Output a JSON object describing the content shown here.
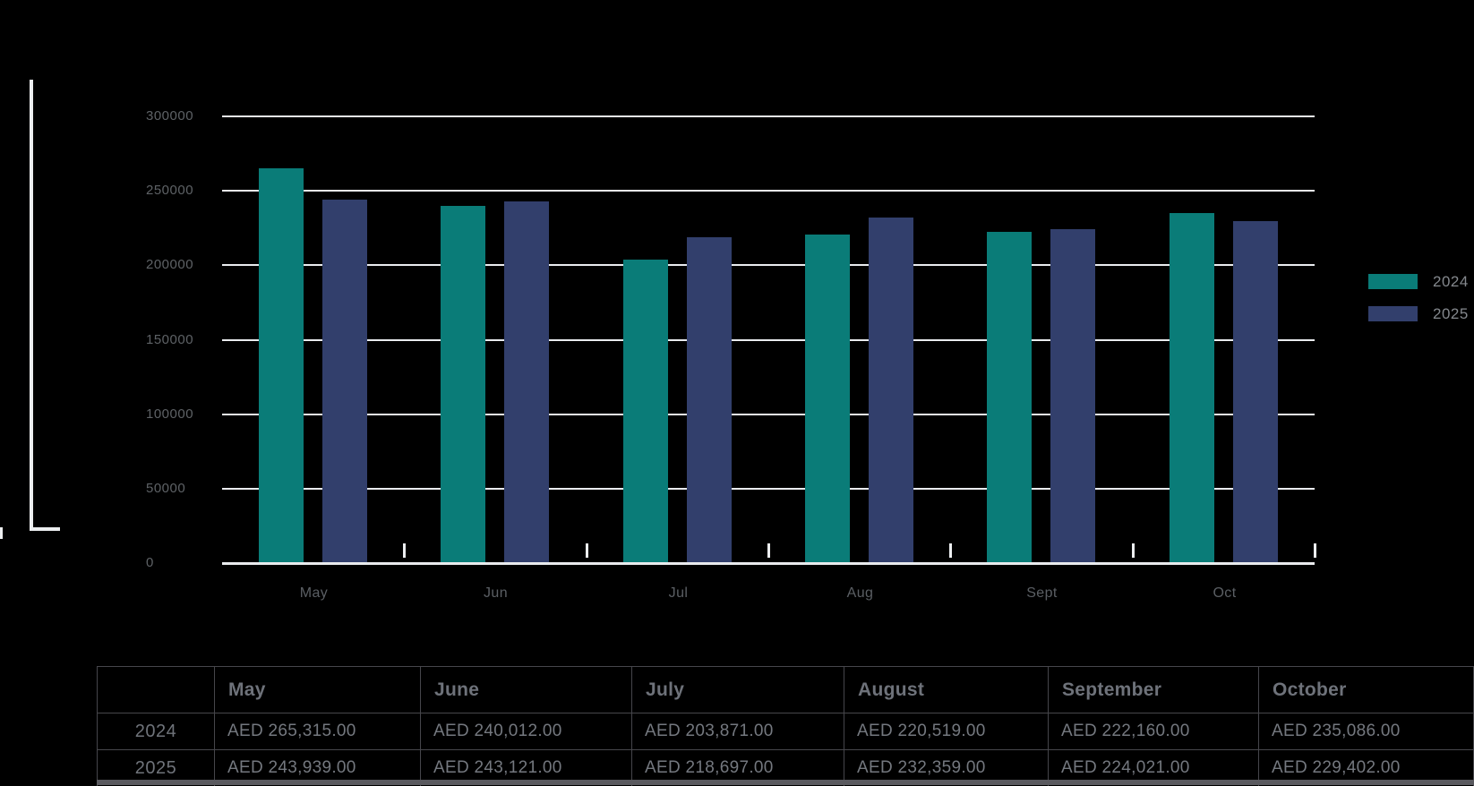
{
  "chart_data": {
    "type": "bar",
    "title": "",
    "categories": [
      "May",
      "Jun",
      "Jul",
      "Aug",
      "Sept",
      "Oct"
    ],
    "series": [
      {
        "name": "2024",
        "color": "#0A7C78",
        "values": [
          265315,
          240012,
          203871,
          220519,
          222160,
          235086
        ]
      },
      {
        "name": "2025",
        "color": "#323F6C",
        "values": [
          243939,
          243121,
          218697,
          232359,
          224021,
          229402
        ]
      }
    ],
    "ylim": [
      0,
      300000
    ],
    "yticks": [
      0,
      50000,
      100000,
      150000,
      200000,
      250000,
      300000
    ],
    "ytick_labels": [
      "0",
      "50000",
      "100000",
      "150000",
      "200000",
      "250000",
      "300000"
    ],
    "grid": true,
    "legend_position": "right",
    "xlabel": "",
    "ylabel": ""
  },
  "legend": {
    "items": [
      {
        "label": "2024",
        "color": "#0A7C78"
      },
      {
        "label": "2025",
        "color": "#323F6C"
      }
    ]
  },
  "table": {
    "headers": [
      "",
      "May",
      "June",
      "July",
      "August",
      "September",
      "October"
    ],
    "rows": [
      {
        "label": "2024",
        "cells": [
          "AED 265,315.00",
          "AED 240,012.00",
          "AED 203,871.00",
          "AED 220,519.00",
          "AED 222,160.00",
          "AED 235,086.00"
        ]
      },
      {
        "label": "2025",
        "cells": [
          "AED 243,939.00",
          "AED 243,121.00",
          "AED 218,697.00",
          "AED 232,359.00",
          "AED 224,021.00",
          "AED 229,402.00"
        ]
      }
    ]
  },
  "colors": {
    "background": "#000000",
    "gridline": "#EAECEF",
    "axis_line": "#ECEEF0",
    "ytick_text": "#5E6266",
    "xtick_text": "#5B5F64",
    "legend_text": "#84888D",
    "table_text": "#72767D",
    "table_border": "#46464B",
    "series_2024": "#0A7C78",
    "series_2025": "#323F6C"
  }
}
